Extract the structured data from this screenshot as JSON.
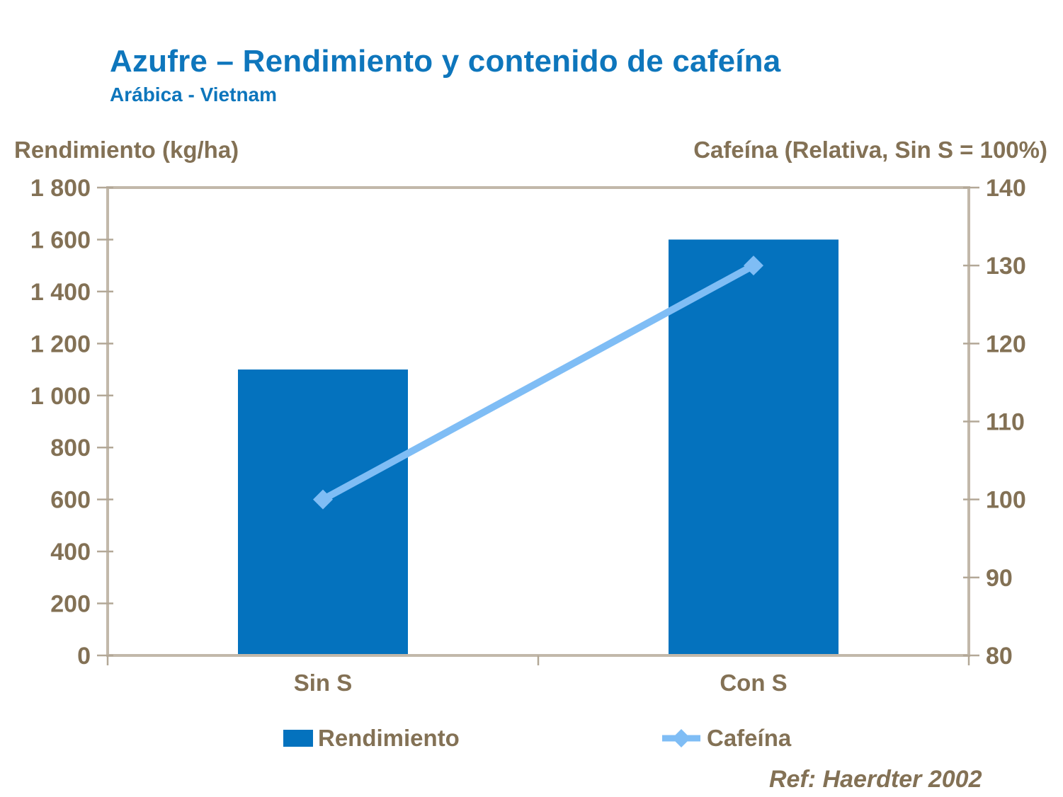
{
  "header": {
    "title": "Azufre – Rendimiento y contenido de cafeína",
    "subtitle": "Arábica - Vietnam"
  },
  "footer": {
    "ref": "Ref: Haerdter 2002"
  },
  "colors": {
    "title_blue": "#0E76BC",
    "bar_blue": "#0472BE",
    "line_light_blue": "#7FBDF5",
    "axis_text_tan": "#837155",
    "axis_line_tan": "#C2B8AA",
    "tick_mark_tan": "#B3A897"
  },
  "chart_data": {
    "type": "bar",
    "subtype": "combo-bar-line-dual-axis",
    "categories": [
      "Sin S",
      "Con S"
    ],
    "series": [
      {
        "name": "Rendimiento",
        "type": "bar",
        "axis": "left",
        "values": [
          1100,
          1600
        ],
        "color": "#0472BE"
      },
      {
        "name": "Cafeína",
        "type": "line",
        "axis": "right",
        "values": [
          100,
          130
        ],
        "color": "#7FBDF5",
        "marker": "diamond"
      }
    ],
    "left_axis": {
      "label": "Rendimiento (kg/ha)",
      "min": 0,
      "max": 1800,
      "step": 200,
      "tick_labels": [
        "0",
        "200",
        "400",
        "600",
        "800",
        "1 000",
        "1 200",
        "1 400",
        "1 600",
        "1 800"
      ]
    },
    "right_axis": {
      "label": "Cafeína (Relativa, Sin S = 100%)",
      "min": 80,
      "max": 140,
      "step": 10,
      "tick_labels": [
        "80",
        "90",
        "100",
        "110",
        "120",
        "130",
        "140"
      ]
    },
    "grid": false,
    "legend_position": "bottom"
  }
}
